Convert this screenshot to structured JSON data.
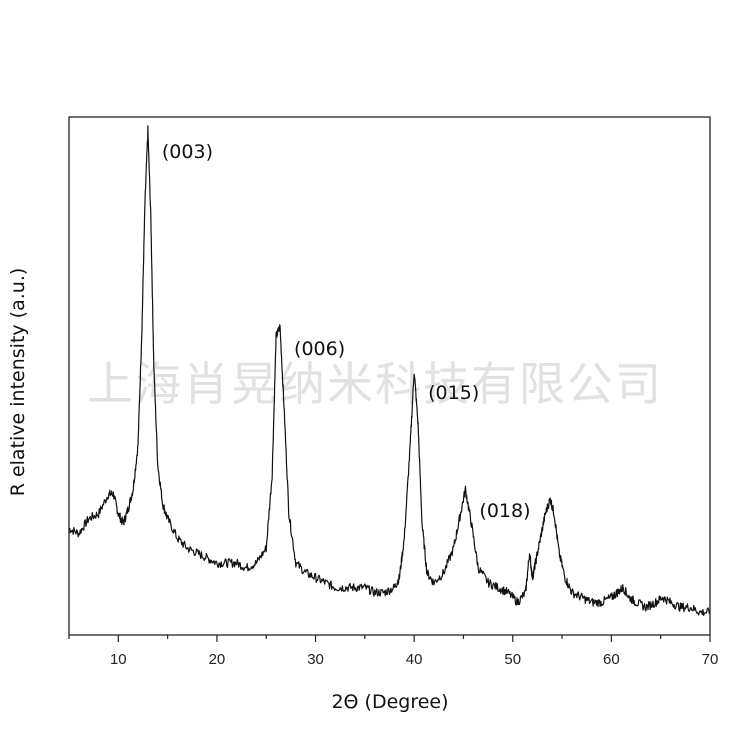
{
  "chart_data": {
    "type": "line",
    "xlabel": "2Θ (Degree)",
    "ylabel": "R elative intensity (a.u.)",
    "xlim": [
      5,
      70
    ],
    "ylim": [
      0,
      100
    ],
    "xticks": [
      10,
      20,
      30,
      40,
      50,
      60,
      70
    ],
    "yticks_shown": false,
    "grid": false,
    "series": [
      {
        "values_note_free": true,
        "x": [
          5,
          6,
          7,
          8,
          9,
          9.5,
          10,
          10.5,
          11,
          11.5,
          12,
          12.4,
          12.7,
          13.0,
          13.3,
          13.6,
          14,
          14.5,
          15,
          16,
          17,
          18,
          19,
          20,
          21,
          22,
          23,
          24,
          25,
          25.6,
          26.0,
          26.4,
          26.8,
          27.3,
          28,
          29,
          30,
          31,
          32,
          33,
          34,
          35,
          36,
          37,
          38,
          38.5,
          39,
          39.6,
          40.0,
          40.4,
          40.8,
          41.3,
          42,
          43,
          44,
          44.6,
          45.2,
          45.8,
          46.5,
          47.5,
          48.5,
          49.5,
          50.5,
          51.3,
          51.7,
          52.0,
          52.3,
          52.8,
          53.3,
          53.8,
          54.2,
          54.7,
          55.3,
          56,
          57,
          58,
          59,
          60,
          60.6,
          61.2,
          61.8,
          62.5,
          63.5,
          64.5,
          65.2,
          66,
          67,
          68,
          69,
          70
        ],
        "y": [
          19,
          18,
          21,
          22,
          26,
          26,
          22,
          20,
          23,
          27,
          36,
          60,
          85,
          100,
          82,
          52,
          32,
          24,
          21,
          17,
          15,
          14,
          13,
          12,
          12,
          12,
          11,
          12,
          15,
          30,
          58,
          60,
          44,
          22,
          12,
          10,
          9,
          8,
          7,
          7,
          7,
          7,
          6,
          6,
          7,
          9,
          17,
          36,
          51,
          40,
          20,
          10,
          8,
          10,
          15,
          21,
          27,
          20,
          11,
          8,
          7,
          6,
          4,
          6,
          14,
          9,
          12,
          17,
          22,
          25,
          22,
          14,
          9,
          6,
          5,
          4,
          4,
          5,
          6,
          7,
          5,
          4,
          3,
          4,
          5,
          4,
          3,
          3,
          2,
          2
        ]
      }
    ],
    "annotations": [
      {
        "text": "(003)",
        "x": 13.0,
        "y": 100
      },
      {
        "text": "(006)",
        "x": 26.4,
        "y": 60
      },
      {
        "text": "(015)",
        "x": 40.0,
        "y": 51
      },
      {
        "text": "(018)",
        "x": 45.2,
        "y": 27
      }
    ]
  },
  "watermark": "上海肖晃纳米科技有限公司"
}
